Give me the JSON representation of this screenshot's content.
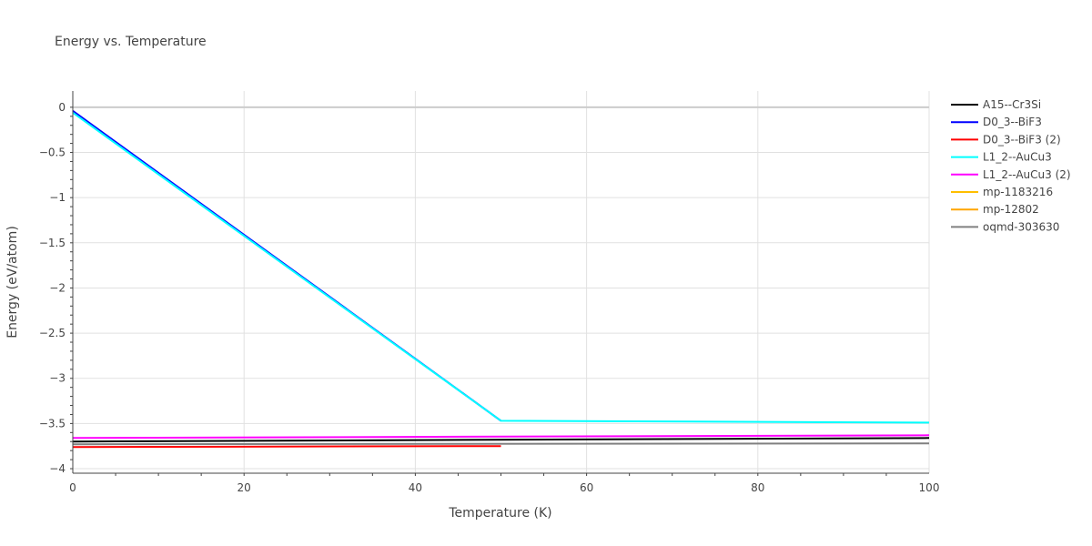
{
  "chart_data": {
    "type": "line",
    "title": "Energy vs. Temperature",
    "xlabel": "Temperature (K)",
    "ylabel": "Energy (eV/atom)",
    "xlim": [
      0,
      100
    ],
    "ylim": [
      -4.05,
      0.18
    ],
    "x_ticks": [
      0,
      20,
      40,
      60,
      80,
      100
    ],
    "y_ticks": [
      0,
      -0.5,
      -1,
      -1.5,
      -2,
      -2.5,
      -3,
      -3.5,
      -4
    ],
    "x_tick_labels": [
      "0",
      "20",
      "40",
      "60",
      "80",
      "100"
    ],
    "y_tick_labels": [
      "0",
      "−0.5",
      "−1",
      "−1.5",
      "−2",
      "−2.5",
      "−3",
      "−3.5",
      "−4"
    ],
    "grid": true,
    "legend_position": "right",
    "series": [
      {
        "name": "A15--Cr3Si",
        "color": "#000000",
        "x": [
          0,
          100
        ],
        "y": [
          -3.7,
          -3.66
        ]
      },
      {
        "name": "D0_3--BiF3",
        "color": "#0000ff",
        "x": [
          0,
          50
        ],
        "y": [
          -0.04,
          -3.47
        ]
      },
      {
        "name": "D0_3--BiF3 (2)",
        "color": "#ff0000",
        "x": [
          0,
          50
        ],
        "y": [
          -3.76,
          -3.75
        ]
      },
      {
        "name": "L1_2--AuCu3",
        "color": "#00ffff",
        "x": [
          0,
          50,
          100
        ],
        "y": [
          -0.06,
          -3.47,
          -3.49
        ]
      },
      {
        "name": "L1_2--AuCu3 (2)",
        "color": "#ff00ff",
        "x": [
          0,
          100
        ],
        "y": [
          -3.66,
          -3.63
        ]
      },
      {
        "name": "mp-1183216",
        "color": "#ffbf00",
        "x": [],
        "y": []
      },
      {
        "name": "mp-12802",
        "color": "#ffa500",
        "x": [],
        "y": []
      },
      {
        "name": "oqmd-303630",
        "color": "#808080",
        "x": [
          0,
          100
        ],
        "y": [
          -3.73,
          -3.72
        ]
      }
    ]
  }
}
